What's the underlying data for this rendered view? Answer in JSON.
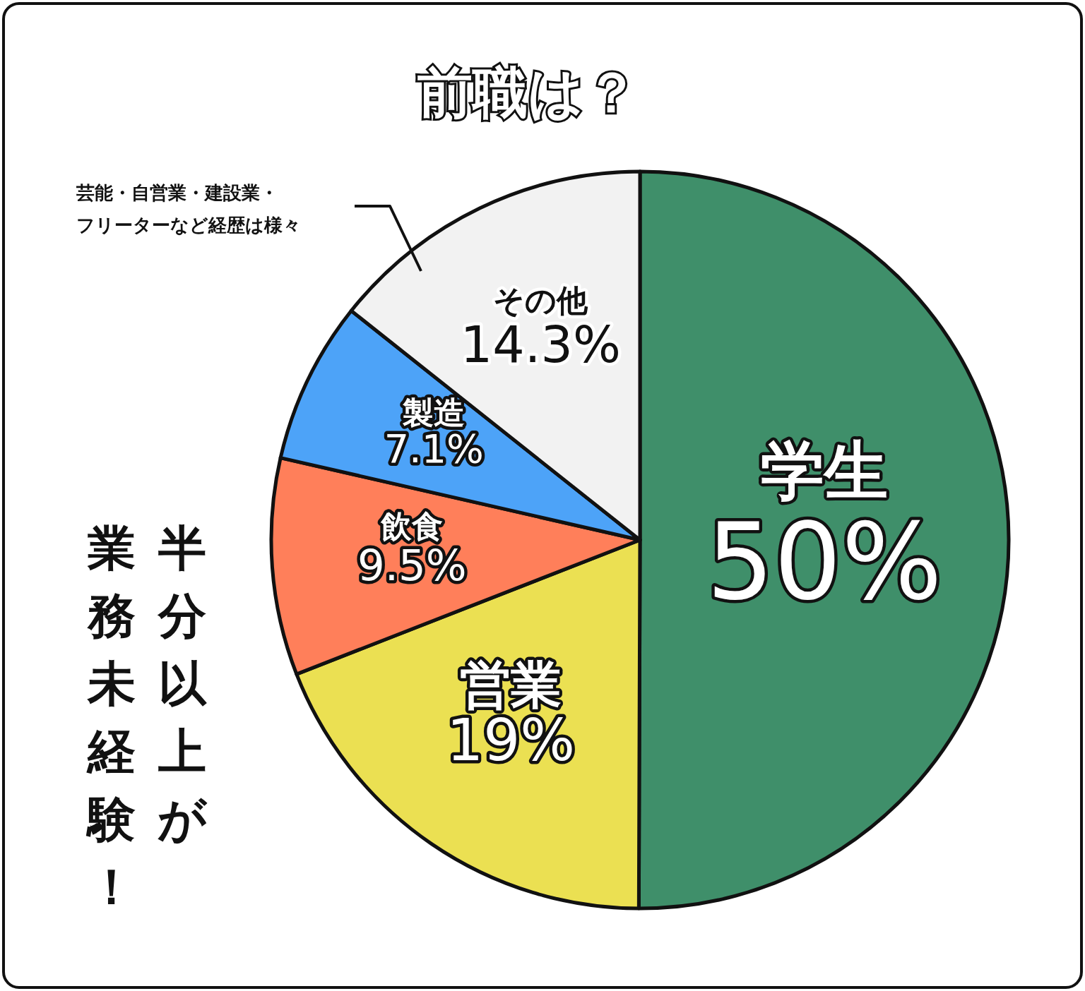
{
  "chart_data": {
    "type": "pie",
    "title": "前職は？",
    "categories": [
      "学生",
      "営業",
      "飲食",
      "製造",
      "その他"
    ],
    "values": [
      50,
      19,
      9.5,
      7.1,
      14.3
    ],
    "colors": [
      "#3f8f6a",
      "#ebe052",
      "#ff7f5a",
      "#4da3f8",
      "#f2f2f2"
    ],
    "value_labels": [
      "50%",
      "19%",
      "9.5%",
      "7.1%",
      "14.3%"
    ],
    "annotations": [
      "芸能・自営業・建設業・",
      "フリーターなど経歴は様々",
      "半分以上が",
      "業務未経験！"
    ]
  }
}
